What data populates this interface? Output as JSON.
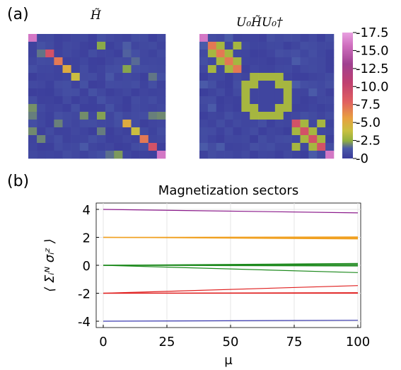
{
  "panel_a": {
    "label": "(a)",
    "left_title": "H̃",
    "right_title": "U₀H̃U₀†",
    "colorbar_ticks": [
      "-17.5",
      "-15.0",
      "-12.5",
      "-10.0",
      "-7.5",
      "-5.0",
      "-2.5",
      "-0"
    ],
    "colorbar_range": [
      0,
      17.5
    ]
  },
  "panel_b": {
    "label": "(b)"
  },
  "chart_data": {
    "type": "line",
    "title": "Magnetization sectors",
    "xlabel": "μ",
    "ylabel": "⟨ Σᵢᴺ σᵢᶻ ⟩",
    "xlim": [
      0,
      100
    ],
    "ylim": [
      -4.2,
      4.2
    ],
    "x_ticks": [
      "0",
      "25",
      "50",
      "75",
      "100"
    ],
    "y_ticks": [
      "-4",
      "-2",
      "0",
      "2",
      "4"
    ],
    "grid": true,
    "x": [
      0,
      100
    ],
    "series": [
      {
        "color": "#8b1a8b",
        "values": [
          4.0,
          3.75
        ]
      },
      {
        "color": "#f0a020",
        "values": [
          2.0,
          2.03
        ]
      },
      {
        "color": "#f0a020",
        "values": [
          2.0,
          1.98
        ]
      },
      {
        "color": "#f0a020",
        "values": [
          2.0,
          1.93
        ]
      },
      {
        "color": "#f0a020",
        "values": [
          2.0,
          1.88
        ]
      },
      {
        "color": "#1e8a1e",
        "values": [
          0.0,
          0.13
        ]
      },
      {
        "color": "#1e8a1e",
        "values": [
          0.0,
          0.06
        ]
      },
      {
        "color": "#1e8a1e",
        "values": [
          0.0,
          0.02
        ]
      },
      {
        "color": "#1e8a1e",
        "values": [
          0.0,
          -0.05
        ]
      },
      {
        "color": "#1e8a1e",
        "values": [
          0.0,
          -0.52
        ]
      },
      {
        "color": "#e02020",
        "values": [
          -2.0,
          -1.45
        ]
      },
      {
        "color": "#e02020",
        "values": [
          -2.0,
          -1.96
        ]
      },
      {
        "color": "#e02020",
        "values": [
          -2.0,
          -2.0
        ]
      },
      {
        "color": "#3a3ab0",
        "values": [
          -4.0,
          -3.93
        ]
      }
    ]
  }
}
